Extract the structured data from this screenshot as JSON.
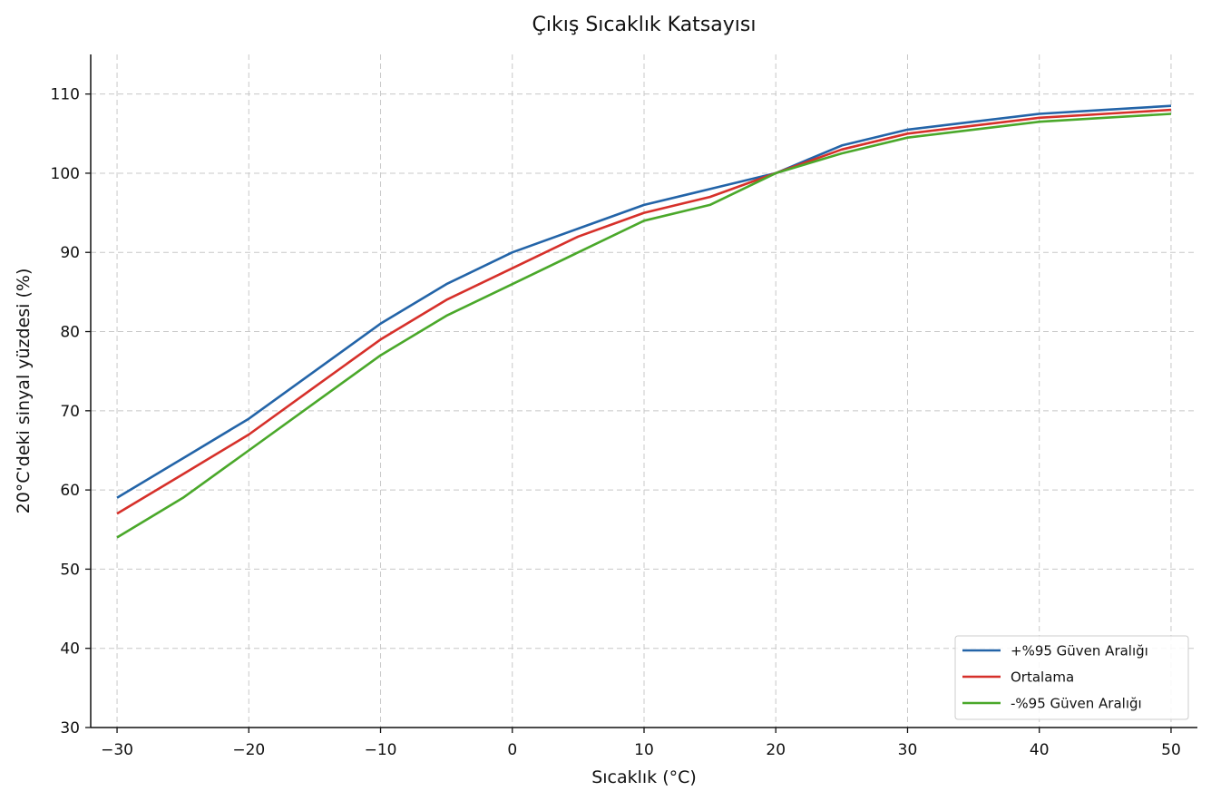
{
  "chart_data": {
    "type": "line",
    "title": "Çıkış Sıcaklık Katsayısı",
    "xlabel": "Sıcaklık (°C)",
    "ylabel": "20°C'deki sinyal yüzdesi (%)",
    "xlim": [
      -32,
      52
    ],
    "ylim": [
      30,
      115
    ],
    "xticks": [
      -30,
      -20,
      -10,
      0,
      10,
      20,
      30,
      40,
      50
    ],
    "xtick_labels": [
      "−30",
      "−20",
      "−10",
      "0",
      "10",
      "20",
      "30",
      "40",
      "50"
    ],
    "yticks": [
      30,
      40,
      50,
      60,
      70,
      80,
      90,
      100,
      110
    ],
    "ytick_labels": [
      "30",
      "40",
      "50",
      "60",
      "70",
      "80",
      "90",
      "100",
      "110"
    ],
    "grid": true,
    "legend_position": "bottom-right",
    "x": [
      -30,
      -25,
      -20,
      -15,
      -10,
      -5,
      0,
      5,
      10,
      15,
      20,
      25,
      30,
      35,
      40,
      45,
      50
    ],
    "series": [
      {
        "name": "+%95 Güven Aralığı",
        "color": "#2364a8",
        "values": [
          59,
          64,
          69,
          75,
          81,
          86,
          90,
          93,
          96,
          98,
          100,
          103.5,
          105.5,
          106.5,
          107.5,
          108,
          108.5
        ]
      },
      {
        "name": "Ortalama",
        "color": "#d6302a",
        "values": [
          57,
          62,
          67,
          73,
          79,
          84,
          88,
          92,
          95,
          97,
          100,
          103,
          105,
          106,
          107,
          107.5,
          108
        ]
      },
      {
        "name": "-%95 Güven Aralığı",
        "color": "#4aa82a",
        "values": [
          54,
          59,
          65,
          71,
          77,
          82,
          86,
          90,
          94,
          96,
          100,
          102.5,
          104.5,
          105.5,
          106.5,
          107,
          107.5
        ]
      }
    ]
  }
}
